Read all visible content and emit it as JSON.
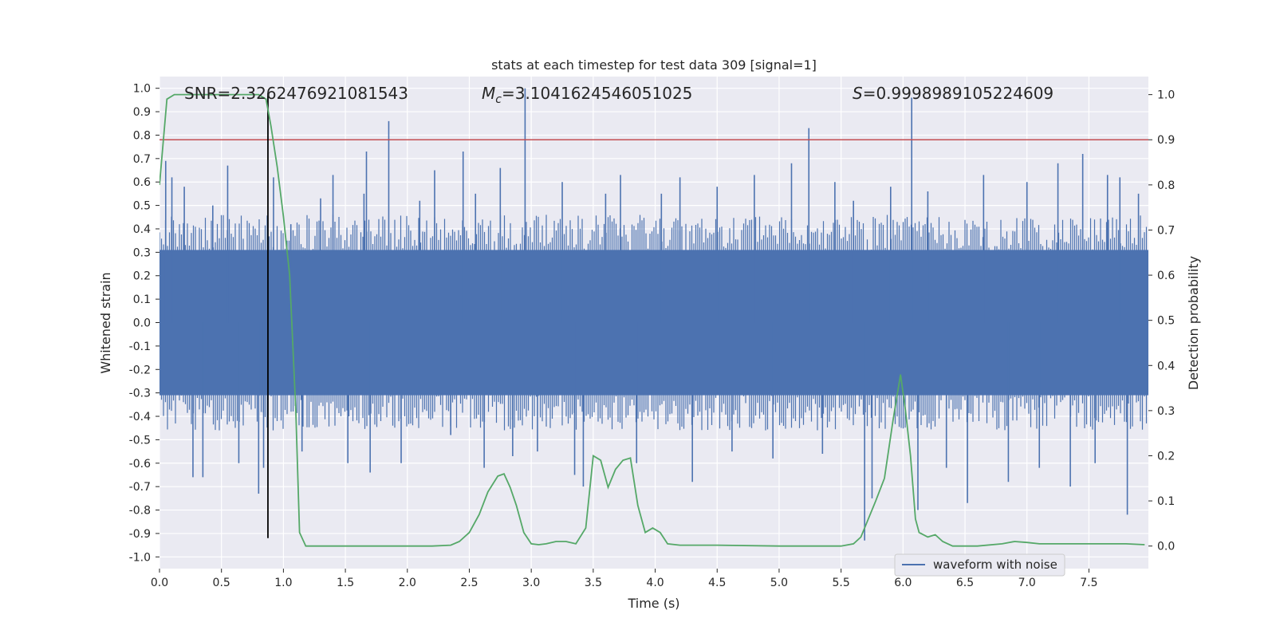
{
  "chart_data": {
    "type": "line",
    "title": "stats at each timestep for test data 309 [signal=1]",
    "xlabel": "Time (s)",
    "ylabel_left": "Whitened strain",
    "ylabel_right": "Detection probability",
    "xlim": [
      0.0,
      7.98
    ],
    "ylim_left": [
      -1.05,
      1.05
    ],
    "ylim_right": [
      -0.05,
      1.04
    ],
    "x_ticks": [
      "0.0",
      "0.5",
      "1.0",
      "1.5",
      "2.0",
      "2.5",
      "3.0",
      "3.5",
      "4.0",
      "4.5",
      "5.0",
      "5.5",
      "6.0",
      "6.5",
      "7.0",
      "7.5"
    ],
    "y_ticks_left": [
      "1.0",
      "0.9",
      "0.8",
      "0.7",
      "0.6",
      "0.5",
      "0.4",
      "0.3",
      "0.2",
      "0.1",
      "0.0",
      "-0.1",
      "-0.2",
      "-0.3",
      "-0.4",
      "-0.5",
      "-0.6",
      "-0.7",
      "-0.8",
      "-0.9",
      "-1.0"
    ],
    "y_ticks_right": [
      "1.0",
      "0.9",
      "0.8",
      "0.7",
      "0.6",
      "0.5",
      "0.4",
      "0.3",
      "0.2",
      "0.1",
      "0.0"
    ],
    "grid": true,
    "annotations": {
      "snr": "SNR=2.3262476921081543",
      "mc_symbol": "M",
      "mc_sub": "c",
      "mc_value": "=3.1041624546051025",
      "s_symbol": "S",
      "s_value": "=0.9998989105224609"
    },
    "legend": {
      "placement": "lower-right",
      "entries": [
        "waveform with noise"
      ]
    },
    "threshold_line": {
      "y_right": 0.9,
      "color": "#c44e52"
    },
    "marker_line": {
      "x": 0.875,
      "color": "#000000"
    },
    "strain_series": {
      "name": "waveform with noise",
      "color": "#4c72b0",
      "band": [
        -0.31,
        0.31
      ],
      "spikes": [
        {
          "x": 0.05,
          "v": 0.69
        },
        {
          "x": 0.1,
          "v": 0.62
        },
        {
          "x": 0.2,
          "v": 0.58
        },
        {
          "x": 0.27,
          "v": -0.66
        },
        {
          "x": 0.35,
          "v": -0.66
        },
        {
          "x": 0.43,
          "v": 0.5
        },
        {
          "x": 0.55,
          "v": 0.67
        },
        {
          "x": 0.64,
          "v": -0.6
        },
        {
          "x": 0.8,
          "v": -0.73
        },
        {
          "x": 0.84,
          "v": -0.62
        },
        {
          "x": 0.92,
          "v": 0.62
        },
        {
          "x": 1.06,
          "v": 0.42
        },
        {
          "x": 1.15,
          "v": -0.55
        },
        {
          "x": 1.3,
          "v": 0.53
        },
        {
          "x": 1.4,
          "v": 0.63
        },
        {
          "x": 1.52,
          "v": -0.6
        },
        {
          "x": 1.65,
          "v": 0.55
        },
        {
          "x": 1.67,
          "v": 0.73
        },
        {
          "x": 1.7,
          "v": -0.64
        },
        {
          "x": 1.85,
          "v": 0.86
        },
        {
          "x": 1.95,
          "v": -0.6
        },
        {
          "x": 2.1,
          "v": 0.52
        },
        {
          "x": 2.22,
          "v": 0.65
        },
        {
          "x": 2.35,
          "v": -0.48
        },
        {
          "x": 2.45,
          "v": 0.73
        },
        {
          "x": 2.55,
          "v": 0.55
        },
        {
          "x": 2.62,
          "v": -0.62
        },
        {
          "x": 2.75,
          "v": 0.66
        },
        {
          "x": 2.85,
          "v": -0.57
        },
        {
          "x": 2.95,
          "v": 1.0
        },
        {
          "x": 3.05,
          "v": -0.55
        },
        {
          "x": 3.25,
          "v": 0.6
        },
        {
          "x": 3.35,
          "v": -0.65
        },
        {
          "x": 3.42,
          "v": -0.7
        },
        {
          "x": 3.6,
          "v": 0.55
        },
        {
          "x": 3.72,
          "v": 0.63
        },
        {
          "x": 3.85,
          "v": -0.6
        },
        {
          "x": 4.05,
          "v": 0.55
        },
        {
          "x": 4.2,
          "v": 0.62
        },
        {
          "x": 4.3,
          "v": -0.68
        },
        {
          "x": 4.5,
          "v": 0.58
        },
        {
          "x": 4.62,
          "v": -0.55
        },
        {
          "x": 4.8,
          "v": 0.63
        },
        {
          "x": 4.95,
          "v": -0.58
        },
        {
          "x": 5.1,
          "v": 0.68
        },
        {
          "x": 5.24,
          "v": 0.83
        },
        {
          "x": 5.35,
          "v": -0.56
        },
        {
          "x": 5.45,
          "v": 0.6
        },
        {
          "x": 5.6,
          "v": 0.52
        },
        {
          "x": 5.69,
          "v": -0.93
        },
        {
          "x": 5.75,
          "v": -0.75
        },
        {
          "x": 5.9,
          "v": 0.58
        },
        {
          "x": 6.07,
          "v": 0.96
        },
        {
          "x": 6.12,
          "v": -0.8
        },
        {
          "x": 6.2,
          "v": 0.56
        },
        {
          "x": 6.35,
          "v": -0.62
        },
        {
          "x": 6.52,
          "v": -0.77
        },
        {
          "x": 6.65,
          "v": 0.63
        },
        {
          "x": 6.85,
          "v": -0.68
        },
        {
          "x": 7.0,
          "v": 0.6
        },
        {
          "x": 7.1,
          "v": -0.62
        },
        {
          "x": 7.25,
          "v": 0.68
        },
        {
          "x": 7.35,
          "v": -0.7
        },
        {
          "x": 7.45,
          "v": 0.72
        },
        {
          "x": 7.55,
          "v": -0.6
        },
        {
          "x": 7.65,
          "v": 0.63
        },
        {
          "x": 7.75,
          "v": 0.62
        },
        {
          "x": 7.81,
          "v": -0.82
        },
        {
          "x": 7.9,
          "v": 0.55
        }
      ]
    },
    "probability_series": {
      "color": "#55a868",
      "x": [
        0.0,
        0.06,
        0.12,
        0.2,
        0.4,
        0.6,
        0.8,
        0.86,
        0.9,
        0.95,
        1.0,
        1.05,
        1.1,
        1.13,
        1.18,
        1.4,
        1.6,
        1.8,
        2.0,
        2.2,
        2.35,
        2.42,
        2.5,
        2.58,
        2.65,
        2.73,
        2.78,
        2.83,
        2.88,
        2.94,
        3.0,
        3.06,
        3.12,
        3.2,
        3.28,
        3.36,
        3.44,
        3.5,
        3.56,
        3.62,
        3.68,
        3.74,
        3.8,
        3.86,
        3.92,
        3.98,
        4.04,
        4.1,
        4.2,
        4.5,
        5.0,
        5.3,
        5.5,
        5.6,
        5.66,
        5.72,
        5.78,
        5.85,
        5.92,
        5.98,
        6.02,
        6.06,
        6.1,
        6.13,
        6.2,
        6.26,
        6.32,
        6.4,
        6.6,
        6.8,
        6.9,
        7.0,
        7.1,
        7.3,
        7.6,
        7.8,
        7.95
      ],
      "y": [
        0.8,
        0.99,
        1.0,
        1.0,
        1.0,
        1.0,
        1.0,
        0.99,
        0.93,
        0.84,
        0.73,
        0.6,
        0.3,
        0.03,
        0.0,
        0.0,
        0.0,
        0.0,
        0.0,
        0.0,
        0.002,
        0.01,
        0.03,
        0.07,
        0.12,
        0.155,
        0.16,
        0.13,
        0.09,
        0.03,
        0.005,
        0.003,
        0.005,
        0.01,
        0.01,
        0.005,
        0.04,
        0.2,
        0.19,
        0.13,
        0.17,
        0.19,
        0.195,
        0.09,
        0.03,
        0.04,
        0.03,
        0.005,
        0.002,
        0.002,
        0.0,
        0.0,
        0.0,
        0.005,
        0.02,
        0.06,
        0.1,
        0.15,
        0.28,
        0.38,
        0.3,
        0.2,
        0.06,
        0.03,
        0.02,
        0.025,
        0.01,
        0.0,
        0.0,
        0.005,
        0.01,
        0.008,
        0.005,
        0.005,
        0.005,
        0.005,
        0.003
      ]
    }
  }
}
